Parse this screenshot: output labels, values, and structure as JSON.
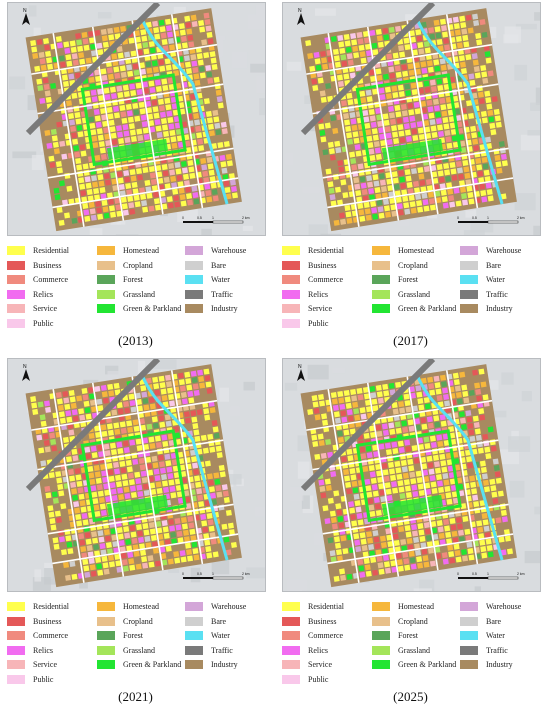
{
  "panels": [
    {
      "year": "(2013)",
      "variant": 0
    },
    {
      "year": "(2017)",
      "variant": 1
    },
    {
      "year": "(2021)",
      "variant": 2
    },
    {
      "year": "(2025)",
      "variant": 3
    }
  ],
  "north_label": "N",
  "scale_bar": {
    "ticks": [
      "0",
      "0.5",
      "1",
      "2 km"
    ]
  },
  "legend": [
    {
      "label": "Residential",
      "color": "#ffff4d"
    },
    {
      "label": "Business",
      "color": "#e45858"
    },
    {
      "label": "Commerce",
      "color": "#f08a7e"
    },
    {
      "label": "Relics",
      "color": "#f16cf0"
    },
    {
      "label": "Service",
      "color": "#f7b5b8"
    },
    {
      "label": "Public",
      "color": "#f9c8ea"
    },
    {
      "label": "Homestead",
      "color": "#f6b73c"
    },
    {
      "label": "Cropland",
      "color": "#e8c08b"
    },
    {
      "label": "Forest",
      "color": "#5aa55a"
    },
    {
      "label": "Grassland",
      "color": "#a4e55a"
    },
    {
      "label": "Green & Parkland",
      "color": "#22e532"
    },
    {
      "label": "Warehouse",
      "color": "#d3a6d8"
    },
    {
      "label": "Bare",
      "color": "#cfcfcf"
    },
    {
      "label": "Water",
      "color": "#5ae0f2"
    },
    {
      "label": "Traffic",
      "color": "#7a7a7a"
    },
    {
      "label": "Industry",
      "color": "#a88a60"
    }
  ]
}
